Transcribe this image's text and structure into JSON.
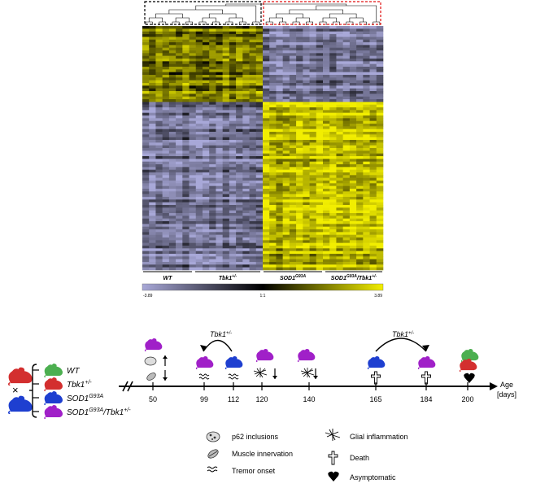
{
  "heatmap": {
    "groups": [
      {
        "label": "WT"
      },
      {
        "label": "Tbk1",
        "sup": "+/-"
      },
      {
        "label": "SOD1",
        "sup": "G93A"
      },
      {
        "label": "SOD1",
        "sup": "G93A",
        "tail": "/Tbk1",
        "tail_sup": "+/-"
      }
    ],
    "scale": {
      "min": "-3.89",
      "mid": "1:1",
      "max": "3.89"
    },
    "colors": {
      "low": "#a8a8d8",
      "mid": "#000000",
      "high": "#f2ee00",
      "cluster_left": "#000000",
      "cluster_right": "#e01010"
    }
  },
  "crossing": {
    "cross_symbol": "×",
    "genotypes": [
      {
        "label": "WT",
        "color": "#4caf50"
      },
      {
        "label": "Tbk1",
        "sup": "+/-",
        "color": "#d32f2f"
      },
      {
        "label": "SOD1",
        "sup": "G93A",
        "color": "#1e3fd0"
      },
      {
        "label": "SOD1",
        "sup": "G93A",
        "tail": "/Tbk1",
        "tail_sup": "+/-",
        "color": "#a020c8"
      }
    ]
  },
  "timeline": {
    "ticks": [
      "50",
      "99",
      "112",
      "120",
      "140",
      "165",
      "184",
      "200"
    ],
    "axis_label_line1": "Age",
    "axis_label_line2": "[days]",
    "tbk1_label": "Tbk1",
    "tbk1_sup": "+/-"
  },
  "legend": [
    {
      "icon": "p62-inclusion-icon",
      "label": "p62 inclusions"
    },
    {
      "icon": "muscle-innervation-icon",
      "label": "Muscle innervation"
    },
    {
      "icon": "tremor-icon",
      "label": "Tremor onset"
    },
    {
      "icon": "glial-icon",
      "label": "Glial inflammation"
    },
    {
      "icon": "cross-icon",
      "label": "Death"
    },
    {
      "icon": "heart-icon",
      "label": "Asymptomatic"
    }
  ]
}
